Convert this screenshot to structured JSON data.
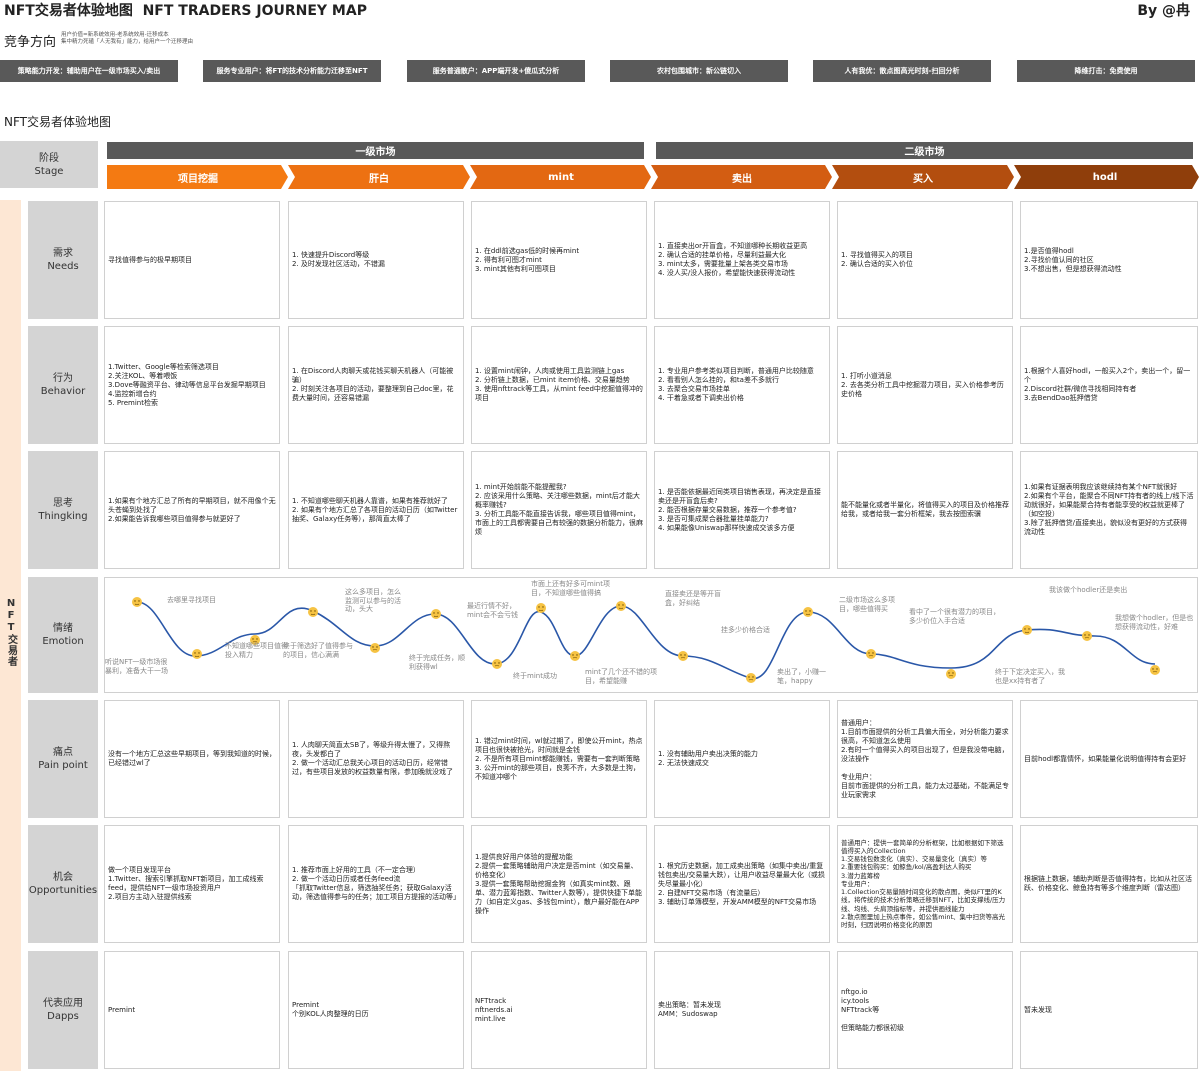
{
  "header": {
    "title_cn": "NFT交易者体验地图",
    "title_en": "NFT TRADERS JOURNEY MAP",
    "byline": "By @冉"
  },
  "competition": {
    "title": "竞争方向",
    "note_lines": [
      "用户价值=新系统效用-老系统效用-迁移成本",
      "集中精力死磕「人无我有」能力，给用户一个迁移理由"
    ],
    "directions": [
      "策略能力开发：辅助用户在一级市场买入/卖出",
      "服务专业用户：将FT的技术分析能力迁移至NFT",
      "服务普通散户：APP端开发+傻瓜式分析",
      "农村包围城市：新公链切入",
      "人有我优：散点图高光时刻-扫回分析",
      "降维打击：免费使用"
    ]
  },
  "map": {
    "title": "NFT交易者体验地图",
    "stage_label_cn": "阶段",
    "stage_label_en": "Stage",
    "markets": [
      "一级市场",
      "二级市场"
    ],
    "stages": [
      "项目挖掘",
      "肝白",
      "mint",
      "卖出",
      "买入",
      "hodl"
    ],
    "side_label": "NFT交易者"
  },
  "rows": [
    {
      "label_cn": "需求",
      "label_en": "Needs",
      "cells": [
        "寻找值得参与的极早期项目",
        "1. 快速提升Discord等级\n2. 及时发现社区活动，不错漏",
        "1. 在ddl前选gas低的时候再mint\n2. 得有利可图才mint\n3. mint其他有利可图项目",
        "1. 直接卖出or开盲盒，不知道哪种长期收益更高\n2. 确认合适的挂单价格，尽量利益最大化\n3. mint太多，需要批量上架各类交易市场\n4. 没人买/没人报价，希望能快速获得流动性",
        "1. 寻找值得买入的项目\n2. 确认合适的买入价位",
        "1.是否值得hodl\n2.寻找价值认同的社区\n3.不想出售，但是想获得流动性"
      ]
    },
    {
      "label_cn": "行为",
      "label_en": "Behavior",
      "cells": [
        "1.Twitter、Google等检索筛选项目\n2.关注KOL、等着喂饭\n3.Dove等融资平台、律动等信息平台发掘早期项目\n4.监控新增合约\n5. Premint检索",
        "1. 在Discord人肉聊天或花钱买聊天机器人（可能被骗）\n2. 时刻关注各项目的活动，要整理到自己doc里，花费大量时间，还容易错漏",
        "1. 设置mint闹钟，人肉或使用工具监测链上gas\n2. 分析链上数据，已mint item价格、交易量趋势\n3. 使用nfttrack等工具，从mint feed中挖掘值得冲的项目",
        "1. 专业用户参考类似项目判断，普通用户比较随意\n2. 看看别人怎么挂的，和ta差不多就行\n3. 去聚合交易市场挂单\n4. 干着急或者下调卖出价格",
        "1. 打听小道消息\n2. 去各类分析工具中挖掘潜力项目，买入价格参考历史价格",
        "1.根据个人喜好hodl，一般买入2个，卖出一个，留一个\n2.Discord社群/微信寻找相同持有者\n3.去BendDao抵押借贷"
      ]
    },
    {
      "label_cn": "思考",
      "label_en": "Thingking",
      "cells": [
        "1.如果有个地方汇总了所有的早期项目，就不用像个无头苍蝇到处找了\n2.如果能告诉我哪些项目值得参与就更好了",
        "1. 不知道哪些聊天机器人靠谱，如果有推荐就好了\n2. 如果有个地方汇总了各项目的活动日历（如Twitter抽奖、Galaxy任务等），那简直太棒了",
        "1. mint开始前能不能提醒我?\n2. 应该采用什么策略、关注哪些数据，mint后才能大概率赚钱?\n3. 分析工具能不能直接告诉我，哪些项目值得mint，市面上的工具都需要自己有较强的数据分析能力，很麻烦",
        "1. 是否能依据最近同类项目销售表现，再决定是直接卖还是开盲盒后卖?\n2. 能否根据存量交易数据，推荐一个参考值?\n3. 是否可集成聚合器批量挂单能力?\n4. 如果能像Uniswap那样快速成交该多方便",
        "能不能量化或者半量化，将值得买入的项目及价格推荐给我，或者给我一套分析框架，我去按图索骥",
        "1.如果有证据表明我应该继续持有某个NFT就很好\n2.如果有个平台，能聚合不同NFT持有者的线上/线下活动就很好，如果能聚合持有者能享受的权益就更棒了（如空投）\n3.除了抵押借贷/直接卖出，貌似没有更好的方式获得流动性"
      ]
    },
    {
      "label_cn": "痛点",
      "label_en": "Pain point",
      "cells": [
        "没有一个地方汇总这些早期项目，等到我知道的时候，已经错过wl了",
        "1. 人肉聊天简直太SB了，等级升得太慢了，又得熬夜，头发都白了\n2. 做一个活动汇总我关心项目的活动日历，经常错过，有些项目发放的权益数量有限，参加晚就没戏了",
        "1. 错过mint时间，wl就过期了，即使公开mint，热点项目也很快被抢光，时间就是金钱\n2. 不是所有项目mint都能赚钱，需要有一套判断策略\n3. 公开mint的那些项目，良莠不齐，大多数是土狗，不知道冲哪个",
        "1. 没有辅助用户卖出决策的能力\n2. 无法快速成交",
        "普通用户：\n1.目前市面提供的分析工具偏大而全，对分析能力要求很高，不知道怎么使用\n2.有时一个值得买入的项目出现了，但是我没带电脑，没法操作\n\n专业用户：\n目前市面提供的分析工具，能力太过基础，不能满足专业玩家需求",
        "目前hodl都靠情怀，如果能量化说明值得持有会更好"
      ]
    },
    {
      "label_cn": "机会",
      "label_en": "Opportunities",
      "cells": [
        "做一个项目发现平台\n1.Twitter、搜索引擎抓取NFT新项目，加工成线索feed，提供给NFT一级市场投资用户\n2.项目方主动入驻提供线索",
        "1. 推荐市面上好用的工具（不一定合理）\n2. 做一个活动日历或者任务feed流\n「抓取Twitter信息，筛选抽奖任务；获取Galaxy活动，筛选值得参与的任务；加工项目方提报的活动等」",
        "1.提供良好用户体验的提醒功能\n2.提供一套策略辅助用户决定是否mint（如交易量、价格变化）\n3.提供一套策略帮助挖掘金狗（如真实mint数、跟单、潜力蓝筹指数、Twitter人数等），提供快捷下单能力（如自定义gas、多钱包mint），散户最好能在APP操作",
        "1. 根究历史数据，加工成卖出策略（如集中卖出/重复钱包卖出/交易量大跌），让用户收益尽量最大化（或损失尽量最小化）\n2. 自建NFT交易市场（有流量后）\n3. 辅助订单簿模型，开发AMM模型的NFT交易市场",
        "普通用户：提供一套简单的分析框架，比如根据如下筛选值得买入的Collection\n1.交易钱包数变化（真实）、交易量变化（真实）等\n2.重要钱包购买：如鲸鱼/kol/高盈利达人购买\n3.潜力蓝筹榜\n专业用户：\n1.Collection交易量随时间变化的散点图，类似FT里的K线，将传统的技术分析策略迁移到NFT，比如支撑线/压力线、均线、头肩顶指标等，并提供画线能力\n2.散点图里加上热点事件，如公售mint、集中扫货等高光时刻，归因说明价格变化的原因",
        "根据链上数据，辅助判断是否值得持有，比如从社区活跃、价格变化、鲸鱼持有等多个维度判断（雷达图）"
      ]
    },
    {
      "label_cn": "代表应用",
      "label_en": "Dapps",
      "cells": [
        "Premint",
        "Premint\n个别KOL人肉整理的日历",
        "NFTtrack\nnftnerds.ai\nmint.live",
        "卖出策略：暂未发现\nAMM：Sudoswap",
        "nftgo.io\nicy.tools\nNFTtrack等\n\n但策略能力都很初级",
        "暂未发现"
      ]
    }
  ],
  "emotion": {
    "label_cn": "情绪",
    "label_en": "Emotion",
    "annotations": [
      "听说NFT一级市场很暴利，准备大干一场",
      "去哪里寻找项目",
      "不知道哪些项目值得投入精力",
      "终于筛选好了值得参与的项目，信心满满",
      "这么多项目，怎么监测可以参与的活动，头大",
      "终于完成任务，顺利获得wl",
      "最近行情不好，mint会不会亏钱",
      "终于mint成功",
      "市面上还有好多可mint项目，不知道哪些值得搞",
      "mint了几个还不错的项目，希望能赚",
      "直接卖还是等开盲盒，好纠结",
      "挂多少价格合适",
      "卖出了，小赚一笔，happy",
      "二级市场这么多项目，哪些值得买",
      "看中了一个很有潜力的项目，多少价位入手合适",
      "终于下定决定买入，我也是xx持有者了",
      "我该做个hodler还是卖出",
      "我想做个hodler，但是也想获得流动性，好难"
    ]
  }
}
